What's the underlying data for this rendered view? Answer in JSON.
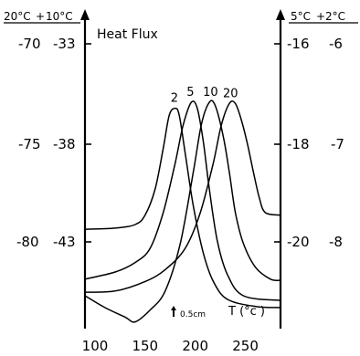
{
  "chart_data": {
    "type": "line",
    "title": "Heat Flux",
    "xlabel": "T (°c )",
    "xlim": [
      90,
      285
    ],
    "x_ticks": [
      "100",
      "150",
      "200",
      "250"
    ],
    "scale_bar": "0.5cm",
    "left_headers": [
      "20°C",
      "10°C"
    ],
    "right_headers": [
      "5°C",
      "2°C"
    ],
    "left_ticks": [
      {
        "a": "-70",
        "b": "-33"
      },
      {
        "a": "-75",
        "b": "-38"
      },
      {
        "a": "-80",
        "b": "-43"
      }
    ],
    "right_ticks": [
      {
        "a": "-16",
        "b": "-6"
      },
      {
        "a": "-18",
        "b": "-7"
      },
      {
        "a": "-20",
        "b": "-8"
      }
    ],
    "series": [
      {
        "name": "2",
        "points": [
          [
            90,
            0.38
          ],
          [
            120,
            0.385
          ],
          [
            140,
            0.4
          ],
          [
            150,
            0.44
          ],
          [
            160,
            0.55
          ],
          [
            168,
            0.72
          ],
          [
            174,
            0.86
          ],
          [
            180,
            0.89
          ],
          [
            184,
            0.86
          ],
          [
            190,
            0.7
          ],
          [
            198,
            0.48
          ],
          [
            208,
            0.28
          ],
          [
            218,
            0.16
          ],
          [
            232,
            0.085
          ],
          [
            260,
            0.055
          ],
          [
            285,
            0.05
          ]
        ]
      },
      {
        "name": "5",
        "points": [
          [
            90,
            0.17
          ],
          [
            120,
            0.2
          ],
          [
            140,
            0.24
          ],
          [
            155,
            0.3
          ],
          [
            168,
            0.45
          ],
          [
            180,
            0.66
          ],
          [
            188,
            0.82
          ],
          [
            196,
            0.915
          ],
          [
            202,
            0.89
          ],
          [
            208,
            0.75
          ],
          [
            214,
            0.55
          ],
          [
            222,
            0.33
          ],
          [
            232,
            0.19
          ],
          [
            248,
            0.1
          ],
          [
            285,
            0.08
          ]
        ]
      },
      {
        "name": "10",
        "points": [
          [
            90,
            0.1
          ],
          [
            110,
            0.05
          ],
          [
            130,
            0.01
          ],
          [
            140,
            -0.01
          ],
          [
            155,
            0.04
          ],
          [
            170,
            0.12
          ],
          [
            185,
            0.32
          ],
          [
            198,
            0.62
          ],
          [
            206,
            0.82
          ],
          [
            214,
            0.915
          ],
          [
            220,
            0.9
          ],
          [
            228,
            0.77
          ],
          [
            234,
            0.62
          ],
          [
            240,
            0.45
          ],
          [
            248,
            0.32
          ],
          [
            260,
            0.22
          ],
          [
            275,
            0.17
          ],
          [
            285,
            0.165
          ]
        ]
      },
      {
        "name": "20",
        "points": [
          [
            90,
            0.115
          ],
          [
            120,
            0.12
          ],
          [
            150,
            0.16
          ],
          [
            170,
            0.21
          ],
          [
            190,
            0.3
          ],
          [
            205,
            0.45
          ],
          [
            218,
            0.66
          ],
          [
            226,
            0.82
          ],
          [
            234,
            0.91
          ],
          [
            240,
            0.91
          ],
          [
            246,
            0.84
          ],
          [
            252,
            0.74
          ],
          [
            258,
            0.62
          ],
          [
            264,
            0.51
          ],
          [
            270,
            0.45
          ],
          [
            285,
            0.44
          ]
        ]
      }
    ]
  }
}
